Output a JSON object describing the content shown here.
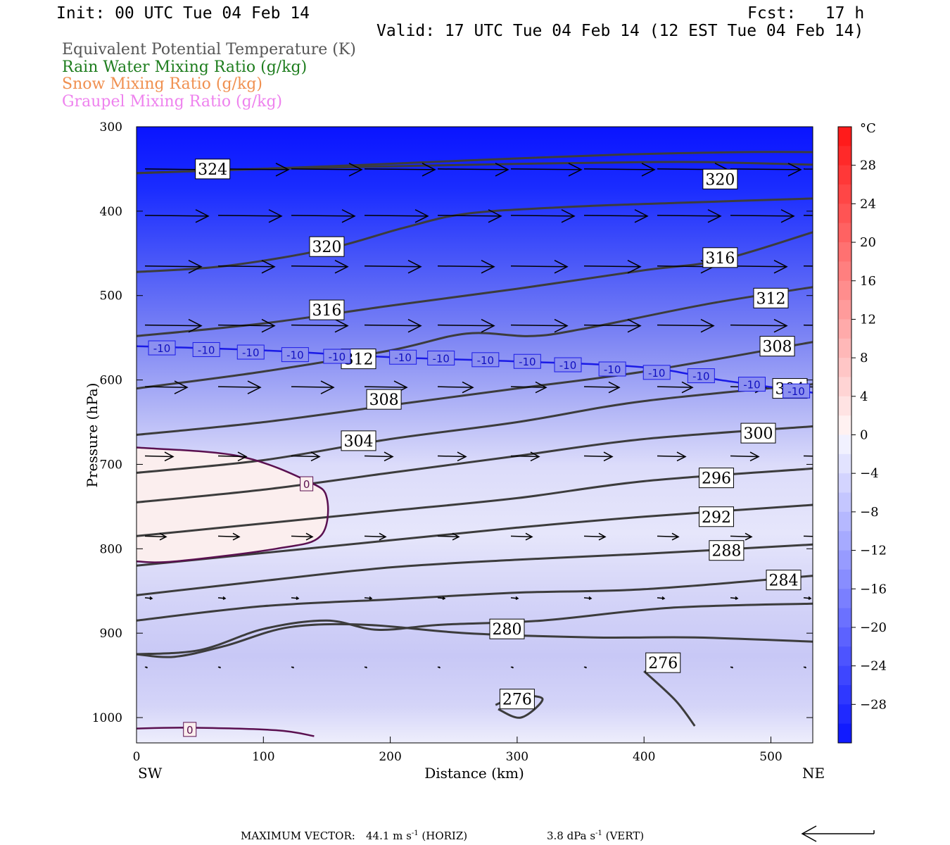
{
  "header": {
    "init": "Init: 00 UTC Tue 04 Feb 14",
    "fcst": "Fcst:   17 h",
    "valid": "Valid: 17 UTC Tue 04 Feb 14 (12 EST Tue 04 Feb 14)"
  },
  "fields": [
    {
      "label": "Equivalent Potential Temperature (K)",
      "color": "#555555"
    },
    {
      "label": "Rain Water Mixing Ratio (g/kg)",
      "color": "#1e7d1e"
    },
    {
      "label": "Snow Mixing Ratio (g/kg)",
      "color": "#f09050"
    },
    {
      "label": "Graupel Mixing Ratio (g/kg)",
      "color": "#ee82ee"
    }
  ],
  "footer": {
    "max_vector_label": "MAXIMUM VECTOR:",
    "horiz_value": "44.1 m s",
    "horiz_unit": "(HORIZ)",
    "vert_value": "3.8 dPa s",
    "vert_unit": "(VERT)",
    "exponent": "-1"
  },
  "chart_data": {
    "type": "cross-section",
    "xlabel": "Distance (km)",
    "ylabel": "Pressure (hPa)",
    "xlim": [
      0,
      533
    ],
    "ylim": [
      1030,
      300
    ],
    "x_ticks": [
      0,
      100,
      200,
      300,
      400,
      500
    ],
    "y_ticks": [
      300,
      400,
      500,
      600,
      700,
      800,
      900,
      1000
    ],
    "x_end_labels": {
      "left": "SW",
      "right": "NE"
    },
    "colorbar": {
      "unit": "°C",
      "ticks": [
        28,
        24,
        20,
        16,
        12,
        8,
        4,
        0,
        -4,
        -8,
        -12,
        -16,
        -20,
        -24,
        -28
      ],
      "range": [
        -32,
        32
      ]
    },
    "theta_e_contours": [
      {
        "label": "324",
        "points": [
          [
            0,
            355
          ],
          [
            60,
            352
          ],
          [
            150,
            347
          ],
          [
            260,
            340
          ],
          [
            380,
            333
          ],
          [
            480,
            330
          ],
          [
            533,
            330
          ]
        ],
        "labels": [
          [
            60,
            350
          ]
        ]
      },
      {
        "label": "320",
        "points": [
          [
            0,
            355
          ],
          [
            100,
            350
          ],
          [
            200,
            347
          ],
          [
            300,
            344
          ],
          [
            400,
            342
          ],
          [
            450,
            342
          ],
          [
            533,
            345
          ]
        ],
        "labels": [
          [
            460,
            362
          ]
        ]
      },
      {
        "label": "320",
        "points": [
          [
            0,
            472
          ],
          [
            70,
            465
          ],
          [
            150,
            445
          ],
          [
            210,
            420
          ],
          [
            260,
            403
          ],
          [
            340,
            395
          ],
          [
            430,
            390
          ],
          [
            533,
            385
          ]
        ],
        "labels": [
          [
            150,
            442
          ]
        ]
      },
      {
        "label": "316",
        "points": [
          [
            0,
            548
          ],
          [
            100,
            533
          ],
          [
            200,
            512
          ],
          [
            300,
            492
          ],
          [
            400,
            470
          ],
          [
            460,
            458
          ],
          [
            533,
            425
          ]
        ],
        "labels": [
          [
            150,
            517
          ],
          [
            460,
            455
          ]
        ]
      },
      {
        "label": "312",
        "points": [
          [
            0,
            610
          ],
          [
            100,
            590
          ],
          [
            200,
            565
          ],
          [
            260,
            545
          ],
          [
            310,
            548
          ],
          [
            350,
            540
          ],
          [
            450,
            510
          ],
          [
            533,
            490
          ]
        ],
        "labels": [
          [
            175,
            575
          ],
          [
            500,
            503
          ]
        ]
      },
      {
        "label": "308",
        "points": [
          [
            0,
            665
          ],
          [
            100,
            650
          ],
          [
            200,
            630
          ],
          [
            300,
            610
          ],
          [
            400,
            590
          ],
          [
            533,
            555
          ]
        ],
        "labels": [
          [
            195,
            623
          ],
          [
            505,
            560
          ]
        ]
      },
      {
        "label": "304",
        "points": [
          [
            0,
            710
          ],
          [
            100,
            695
          ],
          [
            200,
            670
          ],
          [
            300,
            650
          ],
          [
            400,
            625
          ],
          [
            533,
            605
          ]
        ],
        "labels": [
          [
            175,
            672
          ],
          [
            515,
            610
          ]
        ]
      },
      {
        "label": "300",
        "points": [
          [
            0,
            745
          ],
          [
            100,
            730
          ],
          [
            200,
            710
          ],
          [
            300,
            690
          ],
          [
            400,
            670
          ],
          [
            533,
            655
          ]
        ],
        "labels": [
          [
            490,
            663
          ]
        ]
      },
      {
        "label": "296",
        "points": [
          [
            0,
            785
          ],
          [
            100,
            770
          ],
          [
            200,
            755
          ],
          [
            300,
            740
          ],
          [
            400,
            720
          ],
          [
            533,
            705
          ]
        ],
        "labels": [
          [
            457,
            716
          ]
        ]
      },
      {
        "label": "292",
        "points": [
          [
            0,
            820
          ],
          [
            100,
            805
          ],
          [
            200,
            790
          ],
          [
            300,
            775
          ],
          [
            400,
            762
          ],
          [
            533,
            748
          ]
        ],
        "labels": [
          [
            457,
            762
          ]
        ]
      },
      {
        "label": "288",
        "points": [
          [
            0,
            855
          ],
          [
            100,
            838
          ],
          [
            200,
            822
          ],
          [
            300,
            813
          ],
          [
            400,
            806
          ],
          [
            533,
            795
          ]
        ],
        "labels": [
          [
            465,
            802
          ]
        ]
      },
      {
        "label": "284",
        "points": [
          [
            0,
            885
          ],
          [
            100,
            868
          ],
          [
            200,
            860
          ],
          [
            300,
            852
          ],
          [
            400,
            848
          ],
          [
            533,
            832
          ]
        ],
        "labels": [
          [
            510,
            837
          ]
        ]
      },
      {
        "label": "280",
        "points": [
          [
            0,
            925
          ],
          [
            50,
            920
          ],
          [
            100,
            895
          ],
          [
            150,
            885
          ],
          [
            190,
            896
          ],
          [
            240,
            890
          ],
          [
            320,
            885
          ],
          [
            420,
            870
          ],
          [
            533,
            865
          ]
        ],
        "labels": [
          [
            292,
            895
          ]
        ]
      },
      {
        "label": "276",
        "points": [
          [
            0,
            925
          ],
          [
            30,
            928
          ],
          [
            70,
            915
          ],
          [
            120,
            893
          ],
          [
            180,
            890
          ],
          [
            260,
            900
          ],
          [
            360,
            905
          ],
          [
            440,
            905
          ],
          [
            533,
            910
          ]
        ],
        "labels": [
          [
            415,
            935
          ]
        ]
      },
      {
        "label": "276",
        "points": [
          [
            283,
            985
          ],
          [
            300,
            975
          ],
          [
            320,
            978
          ],
          [
            303,
            1000
          ],
          [
            285,
            990
          ]
        ],
        "labels": [
          [
            300,
            978
          ]
        ]
      },
      {
        "label": "276",
        "points": [
          [
            400,
            945
          ],
          [
            425,
            980
          ],
          [
            440,
            1010
          ]
        ],
        "labels": []
      }
    ],
    "temperature_contours": [
      {
        "label": "-10",
        "points": [
          [
            0,
            560
          ],
          [
            100,
            565
          ],
          [
            200,
            573
          ],
          [
            300,
            578
          ],
          [
            400,
            585
          ],
          [
            460,
            600
          ],
          [
            533,
            615
          ]
        ],
        "labels": [
          [
            20,
            562
          ],
          [
            55,
            564
          ],
          [
            90,
            567
          ],
          [
            125,
            570
          ],
          [
            158,
            572
          ],
          [
            210,
            573
          ],
          [
            240,
            574
          ],
          [
            275,
            576
          ],
          [
            308,
            578
          ],
          [
            340,
            582
          ],
          [
            375,
            587
          ],
          [
            410,
            591
          ],
          [
            445,
            595
          ],
          [
            485,
            605
          ],
          [
            520,
            613
          ]
        ]
      },
      {
        "label": "0",
        "points": [
          [
            0,
            680
          ],
          [
            80,
            690
          ],
          [
            135,
            720
          ],
          [
            150,
            740
          ],
          [
            145,
            785
          ],
          [
            110,
            800
          ],
          [
            30,
            815
          ],
          [
            0,
            815
          ]
        ],
        "labels": [
          [
            134,
            723
          ]
        ]
      },
      {
        "label": "0",
        "points": [
          [
            0,
            1013
          ],
          [
            40,
            1012
          ],
          [
            110,
            1015
          ],
          [
            140,
            1022
          ]
        ],
        "labels": [
          [
            42,
            1014
          ]
        ]
      }
    ],
    "wind_vector_rows": [
      {
        "pressure": 350,
        "speeds": [
          9,
          10,
          10,
          10,
          10,
          10,
          10,
          10,
          10,
          10
        ]
      },
      {
        "pressure": 405,
        "speeds": [
          9,
          9,
          9,
          9,
          9,
          9,
          9,
          9,
          9,
          9
        ]
      },
      {
        "pressure": 465,
        "speeds": [
          8,
          8,
          8,
          8,
          8,
          8,
          8,
          8,
          8,
          8
        ]
      },
      {
        "pressure": 535,
        "speeds": [
          8,
          8,
          8,
          8,
          8,
          8,
          8,
          8,
          8,
          8
        ]
      },
      {
        "pressure": 608,
        "speeds": [
          6,
          6,
          6,
          6,
          5,
          5,
          5,
          5,
          5,
          5
        ]
      },
      {
        "pressure": 690,
        "speeds": [
          4,
          4,
          4,
          4,
          4,
          4,
          4,
          4,
          4,
          4
        ]
      },
      {
        "pressure": 785,
        "speeds": [
          3,
          3,
          3,
          3,
          3,
          3,
          3,
          3,
          3,
          3
        ]
      },
      {
        "pressure": 858,
        "speeds": [
          1,
          1,
          1,
          1,
          1,
          1,
          1,
          1,
          1,
          1
        ]
      },
      {
        "pressure": 940,
        "speeds": [
          0.3,
          0.3,
          0.3,
          0.3,
          0.3,
          0.3,
          0.3,
          0.3,
          0.3,
          0.3
        ]
      }
    ]
  }
}
